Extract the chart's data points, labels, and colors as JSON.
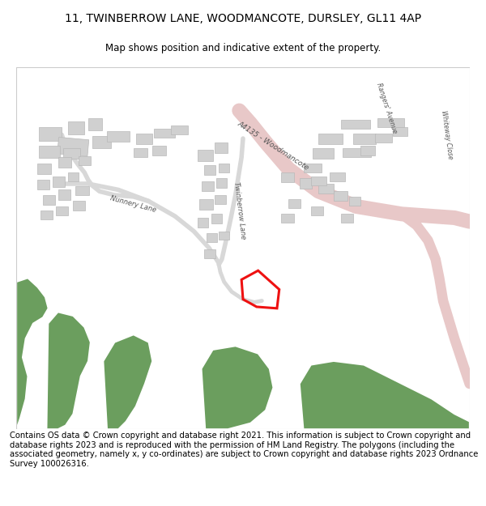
{
  "title": "11, TWINBERROW LANE, WOODMANCOTE, DURSLEY, GL11 4AP",
  "subtitle": "Map shows position and indicative extent of the property.",
  "footer": "Contains OS data © Crown copyright and database right 2021. This information is subject to Crown copyright and database rights 2023 and is reproduced with the permission of HM Land Registry. The polygons (including the associated geometry, namely x, y co-ordinates) are subject to Crown copyright and database rights 2023 Ordnance Survey 100026316.",
  "map_bg": "#f5f5f3",
  "road_color": "#e8c8c8",
  "building_color": "#d0d0d0",
  "building_outline": "#b8b8b8",
  "green_color": "#6b9e5e",
  "property_color": "#ee1111",
  "title_fontsize": 10,
  "subtitle_fontsize": 8.5,
  "footer_fontsize": 7.2,
  "road_label_size": 6.5,
  "lane_label_size": 6.0
}
